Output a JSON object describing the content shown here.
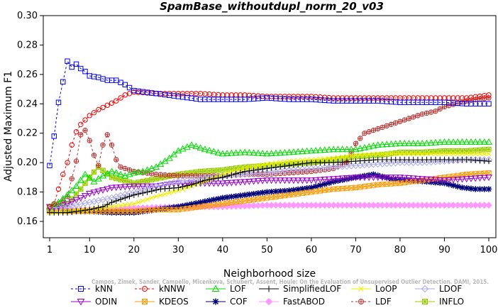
{
  "chart_data": {
    "type": "line",
    "title": "SpamBase_withoutdupl_norm_20_v03",
    "xlabel": "Neighborhood size",
    "ylabel": "Adjusted Maximum F1",
    "xlim": [
      1,
      100
    ],
    "ylim": [
      0.155,
      0.3
    ],
    "xticks": [
      "1",
      "10",
      "20",
      "30",
      "40",
      "50",
      "60",
      "70",
      "80",
      "90",
      "100"
    ],
    "yticks": [
      "0.16",
      "0.18",
      "0.20",
      "0.22",
      "0.24",
      "0.26",
      "0.28",
      "0.30"
    ],
    "legend_position": "bottom",
    "citation": "Campos, Zimek, Sander, Campello, Micenkova, Schubert, Assent, Houle: On the Evaluation of Unsupervised Outlier Detection. DAMI, 2015.",
    "series": [
      {
        "name": "kNN",
        "color": "#0000ee",
        "marker": "square",
        "dash": "3,3",
        "points": [
          [
            1,
            0.198
          ],
          [
            2,
            0.218
          ],
          [
            3,
            0.241
          ],
          [
            4,
            0.255
          ],
          [
            5,
            0.269
          ],
          [
            6,
            0.265
          ],
          [
            7,
            0.267
          ],
          [
            8,
            0.264
          ],
          [
            9,
            0.262
          ],
          [
            10,
            0.259
          ],
          [
            12,
            0.258
          ],
          [
            14,
            0.256
          ],
          [
            16,
            0.256
          ],
          [
            18,
            0.253
          ],
          [
            20,
            0.249
          ],
          [
            25,
            0.247
          ],
          [
            30,
            0.245
          ],
          [
            35,
            0.243
          ],
          [
            40,
            0.243
          ],
          [
            45,
            0.243
          ],
          [
            50,
            0.244
          ],
          [
            55,
            0.243
          ],
          [
            60,
            0.243
          ],
          [
            65,
            0.242
          ],
          [
            70,
            0.242
          ],
          [
            75,
            0.242
          ],
          [
            80,
            0.241
          ],
          [
            85,
            0.241
          ],
          [
            90,
            0.241
          ],
          [
            95,
            0.24
          ],
          [
            100,
            0.24
          ]
        ]
      },
      {
        "name": "kNNW",
        "color": "#ee0000",
        "marker": "circle",
        "dash": "3,3",
        "points": [
          [
            1,
            0.17
          ],
          [
            2,
            0.172
          ],
          [
            3,
            0.182
          ],
          [
            4,
            0.192
          ],
          [
            5,
            0.2
          ],
          [
            6,
            0.212
          ],
          [
            7,
            0.221
          ],
          [
            8,
            0.226
          ],
          [
            9,
            0.229
          ],
          [
            10,
            0.232
          ],
          [
            12,
            0.236
          ],
          [
            14,
            0.239
          ],
          [
            16,
            0.242
          ],
          [
            18,
            0.246
          ],
          [
            20,
            0.248
          ],
          [
            25,
            0.247
          ],
          [
            30,
            0.247
          ],
          [
            35,
            0.247
          ],
          [
            40,
            0.246
          ],
          [
            45,
            0.246
          ],
          [
            50,
            0.245
          ],
          [
            55,
            0.245
          ],
          [
            60,
            0.245
          ],
          [
            65,
            0.244
          ],
          [
            70,
            0.244
          ],
          [
            75,
            0.244
          ],
          [
            80,
            0.244
          ],
          [
            85,
            0.244
          ],
          [
            90,
            0.244
          ],
          [
            95,
            0.244
          ],
          [
            100,
            0.246
          ]
        ]
      },
      {
        "name": "LOF",
        "color": "#00dd00",
        "marker": "triangle-up",
        "dash": "",
        "points": [
          [
            1,
            0.17
          ],
          [
            3,
            0.173
          ],
          [
            5,
            0.178
          ],
          [
            7,
            0.184
          ],
          [
            9,
            0.192
          ],
          [
            11,
            0.187
          ],
          [
            13,
            0.191
          ],
          [
            15,
            0.194
          ],
          [
            18,
            0.191
          ],
          [
            20,
            0.193
          ],
          [
            22,
            0.194
          ],
          [
            25,
            0.197
          ],
          [
            28,
            0.203
          ],
          [
            30,
            0.208
          ],
          [
            33,
            0.212
          ],
          [
            36,
            0.209
          ],
          [
            40,
            0.206
          ],
          [
            45,
            0.207
          ],
          [
            50,
            0.206
          ],
          [
            55,
            0.207
          ],
          [
            60,
            0.208
          ],
          [
            65,
            0.209
          ],
          [
            70,
            0.209
          ],
          [
            75,
            0.212
          ],
          [
            80,
            0.213
          ],
          [
            85,
            0.213
          ],
          [
            90,
            0.214
          ],
          [
            95,
            0.214
          ],
          [
            100,
            0.214
          ]
        ]
      },
      {
        "name": "SimplifiedLOF",
        "color": "#000000",
        "marker": "plus",
        "dash": "",
        "points": [
          [
            1,
            0.166
          ],
          [
            5,
            0.166
          ],
          [
            10,
            0.168
          ],
          [
            13,
            0.17
          ],
          [
            15,
            0.173
          ],
          [
            18,
            0.176
          ],
          [
            20,
            0.178
          ],
          [
            23,
            0.18
          ],
          [
            26,
            0.182
          ],
          [
            30,
            0.183
          ],
          [
            33,
            0.185
          ],
          [
            36,
            0.188
          ],
          [
            40,
            0.19
          ],
          [
            45,
            0.194
          ],
          [
            50,
            0.196
          ],
          [
            55,
            0.198
          ],
          [
            60,
            0.2
          ],
          [
            65,
            0.2
          ],
          [
            70,
            0.201
          ],
          [
            75,
            0.202
          ],
          [
            80,
            0.202
          ],
          [
            85,
            0.202
          ],
          [
            90,
            0.202
          ],
          [
            95,
            0.202
          ],
          [
            100,
            0.201
          ]
        ]
      },
      {
        "name": "LoOP",
        "color": "#eeee00",
        "marker": "x",
        "dash": "",
        "points": [
          [
            1,
            0.166
          ],
          [
            5,
            0.167
          ],
          [
            10,
            0.168
          ],
          [
            15,
            0.17
          ],
          [
            20,
            0.172
          ],
          [
            25,
            0.177
          ],
          [
            30,
            0.181
          ],
          [
            35,
            0.186
          ],
          [
            40,
            0.192
          ],
          [
            45,
            0.196
          ],
          [
            50,
            0.199
          ],
          [
            55,
            0.201
          ],
          [
            60,
            0.202
          ],
          [
            65,
            0.203
          ],
          [
            70,
            0.205
          ],
          [
            75,
            0.206
          ],
          [
            80,
            0.206
          ],
          [
            85,
            0.206
          ],
          [
            90,
            0.206
          ],
          [
            95,
            0.206
          ],
          [
            100,
            0.206
          ]
        ]
      },
      {
        "name": "LDOF",
        "color": "#aaaaee",
        "marker": "diamond",
        "dash": "",
        "points": [
          [
            1,
            0.169
          ],
          [
            5,
            0.17
          ],
          [
            10,
            0.173
          ],
          [
            15,
            0.176
          ],
          [
            20,
            0.18
          ],
          [
            25,
            0.184
          ],
          [
            30,
            0.187
          ],
          [
            35,
            0.189
          ],
          [
            40,
            0.191
          ],
          [
            45,
            0.192
          ],
          [
            50,
            0.193
          ],
          [
            55,
            0.195
          ],
          [
            60,
            0.196
          ],
          [
            65,
            0.197
          ],
          [
            70,
            0.198
          ],
          [
            75,
            0.199
          ],
          [
            80,
            0.2
          ],
          [
            85,
            0.2
          ],
          [
            90,
            0.201
          ],
          [
            95,
            0.202
          ],
          [
            100,
            0.202
          ]
        ]
      },
      {
        "name": "ODIN",
        "color": "#9900cc",
        "marker": "triangle-down",
        "dash": "",
        "points": [
          [
            1,
            0.17
          ],
          [
            3,
            0.17
          ],
          [
            5,
            0.172
          ],
          [
            8,
            0.176
          ],
          [
            10,
            0.179
          ],
          [
            15,
            0.183
          ],
          [
            20,
            0.184
          ],
          [
            25,
            0.184
          ],
          [
            30,
            0.186
          ],
          [
            35,
            0.186
          ],
          [
            40,
            0.186
          ],
          [
            45,
            0.187
          ],
          [
            50,
            0.188
          ],
          [
            55,
            0.188
          ],
          [
            60,
            0.188
          ],
          [
            65,
            0.189
          ],
          [
            70,
            0.19
          ],
          [
            75,
            0.19
          ],
          [
            80,
            0.19
          ],
          [
            85,
            0.189
          ],
          [
            90,
            0.188
          ],
          [
            95,
            0.189
          ],
          [
            100,
            0.19
          ]
        ]
      },
      {
        "name": "KDEOS",
        "color": "#ff9900",
        "marker": "square-x",
        "dash": "",
        "points": [
          [
            1,
            0.167
          ],
          [
            5,
            0.167
          ],
          [
            10,
            0.167
          ],
          [
            15,
            0.167
          ],
          [
            20,
            0.167
          ],
          [
            25,
            0.168
          ],
          [
            30,
            0.168
          ],
          [
            35,
            0.17
          ],
          [
            40,
            0.172
          ],
          [
            45,
            0.174
          ],
          [
            50,
            0.176
          ],
          [
            55,
            0.178
          ],
          [
            60,
            0.18
          ],
          [
            65,
            0.182
          ],
          [
            70,
            0.183
          ],
          [
            75,
            0.185
          ],
          [
            80,
            0.186
          ],
          [
            85,
            0.188
          ],
          [
            90,
            0.19
          ],
          [
            95,
            0.192
          ],
          [
            100,
            0.193
          ]
        ]
      },
      {
        "name": "COF",
        "color": "#000077",
        "marker": "star",
        "dash": "",
        "points": [
          [
            1,
            0.167
          ],
          [
            5,
            0.167
          ],
          [
            10,
            0.167
          ],
          [
            15,
            0.166
          ],
          [
            20,
            0.166
          ],
          [
            25,
            0.168
          ],
          [
            30,
            0.17
          ],
          [
            35,
            0.173
          ],
          [
            40,
            0.176
          ],
          [
            45,
            0.178
          ],
          [
            50,
            0.18
          ],
          [
            55,
            0.181
          ],
          [
            60,
            0.183
          ],
          [
            65,
            0.187
          ],
          [
            70,
            0.19
          ],
          [
            74,
            0.192
          ],
          [
            78,
            0.189
          ],
          [
            82,
            0.188
          ],
          [
            86,
            0.187
          ],
          [
            90,
            0.186
          ],
          [
            94,
            0.183
          ],
          [
            97,
            0.182
          ],
          [
            100,
            0.182
          ]
        ]
      },
      {
        "name": "FastABOD",
        "color": "#ff99ff",
        "marker": "diamond-filled",
        "dash": "",
        "points": [
          [
            1,
            0.168
          ],
          [
            10,
            0.168
          ],
          [
            20,
            0.169
          ],
          [
            30,
            0.17
          ],
          [
            40,
            0.17
          ],
          [
            50,
            0.171
          ],
          [
            60,
            0.171
          ],
          [
            70,
            0.171
          ],
          [
            80,
            0.171
          ],
          [
            90,
            0.171
          ],
          [
            100,
            0.171
          ]
        ]
      },
      {
        "name": "LDF",
        "color": "#bb3333",
        "marker": "circle-plus",
        "dash": "3,3",
        "points": [
          [
            1,
            0.169
          ],
          [
            3,
            0.172
          ],
          [
            5,
            0.177
          ],
          [
            7,
            0.201
          ],
          [
            8,
            0.219
          ],
          [
            9,
            0.222
          ],
          [
            10,
            0.215
          ],
          [
            11,
            0.205
          ],
          [
            12,
            0.198
          ],
          [
            13,
            0.212
          ],
          [
            14,
            0.219
          ],
          [
            15,
            0.212
          ],
          [
            16,
            0.202
          ],
          [
            17,
            0.197
          ],
          [
            20,
            0.194
          ],
          [
            25,
            0.192
          ],
          [
            30,
            0.191
          ],
          [
            35,
            0.191
          ],
          [
            40,
            0.191
          ],
          [
            45,
            0.192
          ],
          [
            50,
            0.192
          ],
          [
            55,
            0.193
          ],
          [
            60,
            0.194
          ],
          [
            65,
            0.196
          ],
          [
            68,
            0.2
          ],
          [
            70,
            0.213
          ],
          [
            72,
            0.22
          ],
          [
            75,
            0.223
          ],
          [
            80,
            0.228
          ],
          [
            85,
            0.233
          ],
          [
            88,
            0.235
          ],
          [
            90,
            0.238
          ],
          [
            95,
            0.242
          ],
          [
            100,
            0.244
          ]
        ]
      },
      {
        "name": "INFLO",
        "color": "#99cc00",
        "marker": "square-star",
        "dash": "",
        "points": [
          [
            1,
            0.168
          ],
          [
            3,
            0.169
          ],
          [
            5,
            0.172
          ],
          [
            8,
            0.182
          ],
          [
            10,
            0.19
          ],
          [
            12,
            0.197
          ],
          [
            15,
            0.19
          ],
          [
            20,
            0.186
          ],
          [
            25,
            0.189
          ],
          [
            30,
            0.192
          ],
          [
            35,
            0.194
          ],
          [
            40,
            0.195
          ],
          [
            45,
            0.197
          ],
          [
            50,
            0.198
          ],
          [
            55,
            0.199
          ],
          [
            60,
            0.2
          ],
          [
            65,
            0.202
          ],
          [
            70,
            0.204
          ],
          [
            75,
            0.205
          ],
          [
            80,
            0.207
          ],
          [
            85,
            0.207
          ],
          [
            90,
            0.208
          ],
          [
            95,
            0.208
          ],
          [
            100,
            0.209
          ]
        ]
      }
    ]
  }
}
